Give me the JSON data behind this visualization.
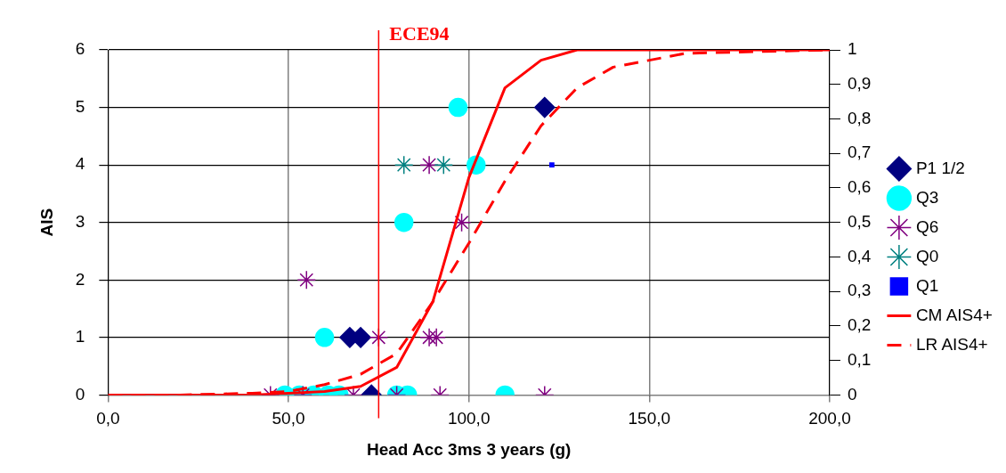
{
  "chart_data": {
    "type": "scatter",
    "xlabel": "Head Acc 3ms 3 years (g)",
    "ylabel": "AIS",
    "xlim": [
      0,
      200
    ],
    "xticks": [
      {
        "value": 0,
        "label": "0,0"
      },
      {
        "value": 50,
        "label": "50,0"
      },
      {
        "value": 100,
        "label": "100,0"
      },
      {
        "value": 150,
        "label": "150,0"
      },
      {
        "value": 200,
        "label": "200,0"
      }
    ],
    "ylim": [
      0,
      6
    ],
    "yticks": [
      0,
      1,
      2,
      3,
      4,
      5,
      6
    ],
    "y2lim": [
      0,
      1
    ],
    "y2ticks": [
      0,
      {
        "value": 0.1,
        "label": "0,1"
      },
      {
        "value": 0.2,
        "label": "0,2"
      },
      {
        "value": 0.3,
        "label": "0,3"
      },
      {
        "value": 0.4,
        "label": "0,4"
      },
      {
        "value": 0.5,
        "label": "0,5"
      },
      {
        "value": 0.6,
        "label": "0,6"
      },
      {
        "value": 0.7,
        "label": "0,7"
      },
      {
        "value": 0.8,
        "label": "0,8"
      },
      {
        "value": 0.9,
        "label": "0,9"
      },
      1
    ],
    "grid": true,
    "legend": "right",
    "ref_lines": [
      {
        "axis": "x",
        "value": 75,
        "label": "ECE94",
        "color": "#ff0000"
      }
    ],
    "series": [
      {
        "name": "P1 1/2",
        "marker": "diamond",
        "color": "#000080",
        "x": [
          67,
          70,
          73,
          121
        ],
        "values": [
          1,
          1,
          0,
          5
        ]
      },
      {
        "name": "Q3",
        "marker": "circle",
        "color": "#00ffff",
        "x": [
          97,
          102,
          82,
          60,
          49,
          53,
          57,
          61,
          64,
          80,
          83,
          110
        ],
        "values": [
          5,
          4,
          3,
          1,
          0,
          0,
          0,
          0,
          0,
          0,
          0,
          0
        ]
      },
      {
        "name": "Q6",
        "marker": "cross",
        "color": "#800080",
        "x": [
          55,
          75,
          89,
          91,
          89,
          98,
          45,
          54,
          68,
          80,
          92,
          121
        ],
        "values": [
          2,
          1,
          1,
          1,
          4,
          3,
          0,
          0,
          0,
          0,
          0,
          0
        ]
      },
      {
        "name": "Q0",
        "marker": "cross",
        "color": "#008080",
        "x": [
          82,
          93
        ],
        "values": [
          4,
          4
        ]
      },
      {
        "name": "Q1",
        "marker": "square",
        "color": "#0000ff",
        "x": [
          123
        ],
        "values": [
          4
        ]
      },
      {
        "name": "CM AIS4+",
        "type": "line",
        "axis": "y2",
        "marker": "none",
        "line_style": "solid",
        "color": "#ff0000",
        "x": [
          0,
          20,
          40,
          50,
          60,
          70,
          80,
          90,
          100,
          110,
          120,
          130,
          200
        ],
        "values": [
          0,
          0,
          0,
          0.005,
          0.01,
          0.025,
          0.08,
          0.27,
          0.63,
          0.89,
          0.97,
          1,
          1
        ]
      },
      {
        "name": "LR AIS4+",
        "type": "line",
        "axis": "y2",
        "marker": "none",
        "line_style": "dashed",
        "color": "#ff0000",
        "x": [
          0,
          20,
          40,
          50,
          60,
          70,
          80,
          90,
          100,
          110,
          120,
          130,
          140,
          150,
          160,
          200
        ],
        "values": [
          0,
          0,
          0.005,
          0.01,
          0.03,
          0.06,
          0.12,
          0.27,
          0.44,
          0.62,
          0.78,
          0.89,
          0.95,
          0.97,
          0.99,
          1
        ]
      }
    ]
  }
}
